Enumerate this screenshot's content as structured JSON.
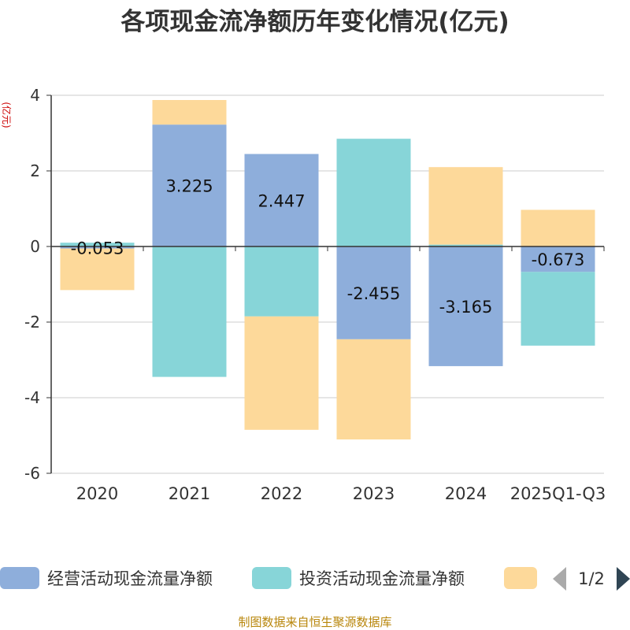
{
  "chart_data": {
    "type": "bar",
    "stacked": true,
    "title": "各项现金流净额历年变化情况(亿元)",
    "ylabel": "(亿元)",
    "ylim": [
      -6,
      4
    ],
    "yticks": [
      4,
      2,
      0,
      -2,
      -4,
      -6
    ],
    "categories": [
      "2020",
      "2021",
      "2022",
      "2023",
      "2024",
      "2025Q1-Q3"
    ],
    "series": [
      {
        "name": "经营活动现金流量净额",
        "color": "#8eaedb",
        "values": [
          -0.053,
          3.225,
          2.447,
          -2.455,
          -3.165,
          -0.673
        ],
        "labels": [
          "-0.053",
          "3.225",
          "2.447",
          "-2.455",
          "-3.165",
          "-0.673"
        ]
      },
      {
        "name": "投资活动现金流量净额",
        "color": "#87d5d8",
        "values": [
          0.1,
          -3.45,
          -1.85,
          2.85,
          0.05,
          -1.95
        ]
      },
      {
        "name": "",
        "color": "#fdd99a",
        "values": [
          -1.1,
          0.65,
          -3.0,
          -2.65,
          2.05,
          0.97
        ]
      }
    ],
    "legend": {
      "page": "1/2"
    },
    "footer": "制图数据来自恒生聚源数据库"
  }
}
